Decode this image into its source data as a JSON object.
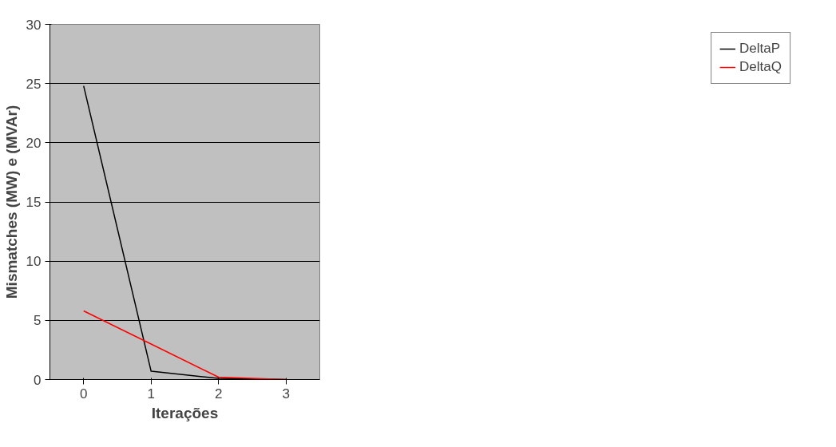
{
  "chart_data": {
    "type": "line",
    "xlabel": "Iterações",
    "ylabel": "Mismatches (MW) e (MVAr)",
    "categories": [
      "0",
      "1",
      "2",
      "3"
    ],
    "series": [
      {
        "name": "DeltaP",
        "color": "#000000",
        "values": [
          24.8,
          0.7,
          0.1,
          0.0
        ]
      },
      {
        "name": "DeltaQ",
        "color": "#ff0000",
        "values": [
          5.8,
          3.0,
          0.2,
          0.0
        ]
      }
    ],
    "ylim": [
      0,
      30
    ],
    "yticks": [
      0,
      5,
      10,
      15,
      20,
      25,
      30
    ],
    "grid": "y",
    "legend": "right"
  }
}
